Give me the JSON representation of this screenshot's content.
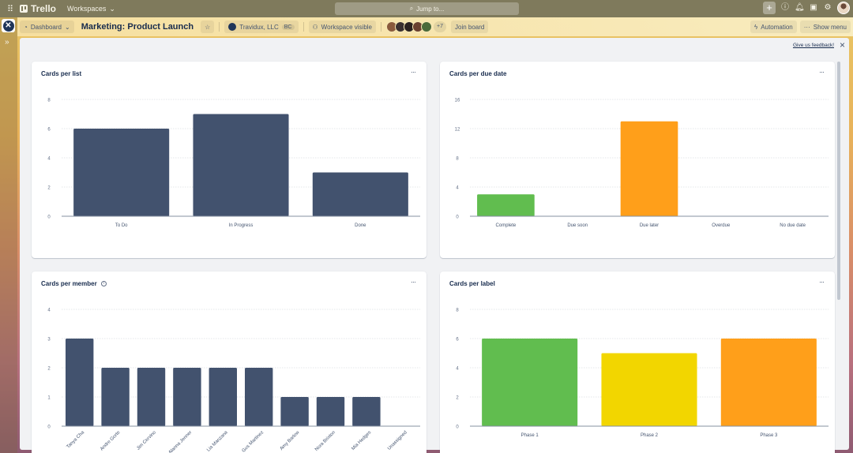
{
  "topnav": {
    "app_name": "Trello",
    "workspaces_label": "Workspaces",
    "search_placeholder": "Jump to...",
    "icons": [
      "apps-grid-icon",
      "plus-icon",
      "info-icon",
      "bell-icon",
      "megaphone-icon",
      "gear-icon",
      "user-avatar"
    ]
  },
  "board_header": {
    "view_label": "Dashboard",
    "board_title": "Marketing: Product Launch",
    "workspace_name": "Travidux, LLC",
    "workspace_badge": "BC",
    "visibility_label": "Workspace visible",
    "extra_members": "+7",
    "join_label": "Join board",
    "automation_label": "Automation",
    "show_menu_label": "Show menu",
    "member_colors": [
      "#8a5a3c",
      "#3a3030",
      "#2b2220",
      "#6a4030",
      "#4a6a3a"
    ]
  },
  "dashboard": {
    "feedback_link": "Give us feedback!",
    "close_label": "×",
    "menu_label": "···"
  },
  "chart_data": [
    {
      "type": "bar",
      "title": "Cards per list",
      "categories": [
        "To Do",
        "In Progress",
        "Done"
      ],
      "values": [
        6,
        7,
        3
      ],
      "colors": [
        "#42526e",
        "#42526e",
        "#42526e"
      ],
      "yticks": [
        0,
        2,
        4,
        6,
        8
      ],
      "ylim": [
        0,
        8
      ],
      "xlabel": "",
      "ylabel": "",
      "grid": true
    },
    {
      "type": "bar",
      "title": "Cards per due date",
      "categories": [
        "Complete",
        "Due soon",
        "Due later",
        "Overdue",
        "No due date"
      ],
      "values": [
        3,
        0,
        13,
        0,
        0
      ],
      "colors": [
        "#61bd4f",
        "#f2d600",
        "#ff9f1a",
        "#eb5a46",
        "#b3bac5"
      ],
      "yticks": [
        0,
        4,
        8,
        12,
        16
      ],
      "ylim": [
        0,
        16
      ],
      "xlabel": "",
      "ylabel": "",
      "grid": true
    },
    {
      "type": "bar",
      "title": "Cards per member",
      "has_info_icon": true,
      "categories": [
        "Tanya Cha",
        "Andre Gorte",
        "Jim Cervino",
        "Alanna Jenner",
        "Lia Manzana",
        "Gus Martinez",
        "Amy Barlow",
        "Nora Brixton",
        "Mia Hedges",
        "Unassigned"
      ],
      "values": [
        3,
        2,
        2,
        2,
        2,
        2,
        1,
        1,
        1,
        0
      ],
      "colors": [
        "#42526e"
      ],
      "yticks": [
        0,
        1,
        2,
        3,
        4
      ],
      "ylim": [
        0,
        4
      ],
      "xlabel": "",
      "ylabel": "",
      "grid": true,
      "rotated_labels": true
    },
    {
      "type": "bar",
      "title": "Cards per label",
      "categories": [
        "Phase 1",
        "Phase 2",
        "Phase 3"
      ],
      "values": [
        6,
        5,
        6
      ],
      "colors": [
        "#61bd4f",
        "#f2d600",
        "#ff9f1a"
      ],
      "yticks": [
        0,
        2,
        4,
        6,
        8
      ],
      "ylim": [
        0,
        8
      ],
      "xlabel": "",
      "ylabel": "",
      "grid": true
    }
  ]
}
